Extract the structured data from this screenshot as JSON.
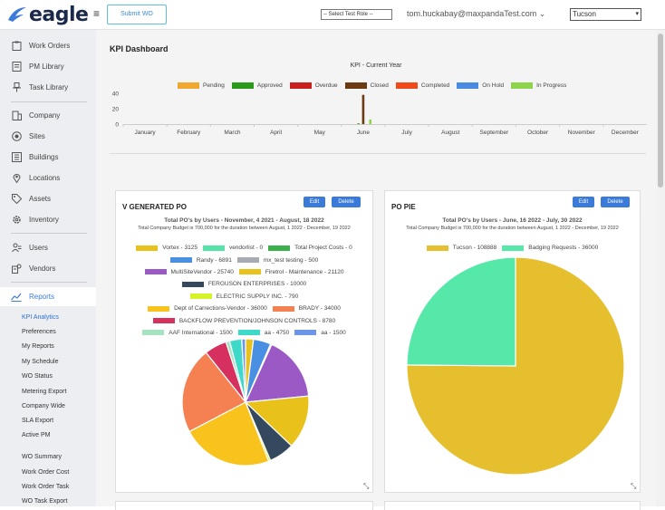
{
  "header": {
    "logo_text": "eagle",
    "submit_wo_label": "Submit WO",
    "role_select": "-- Select Test Role --",
    "user_email": "tom.huckabay@maxpandaTest.com",
    "city_select": "Tucson",
    "brand_color": "#1b2a4a"
  },
  "sidebar": {
    "items": [
      {
        "label": "Work Orders",
        "icon": "clipboard-icon"
      },
      {
        "label": "PM Library",
        "icon": "document-list-icon"
      },
      {
        "label": "Task Library",
        "icon": "pushpin-icon"
      },
      {
        "label": "Company",
        "icon": "building-icon"
      },
      {
        "label": "Sites",
        "icon": "target-icon"
      },
      {
        "label": "Buildings",
        "icon": "buildings-icon"
      },
      {
        "label": "Locations",
        "icon": "map-pin-icon"
      },
      {
        "label": "Assets",
        "icon": "tag-icon"
      },
      {
        "label": "Inventory",
        "icon": "gear-icon"
      },
      {
        "label": "Users",
        "icon": "users-icon"
      },
      {
        "label": "Vendors",
        "icon": "vendors-icon"
      },
      {
        "label": "Reports",
        "icon": "chart-icon"
      }
    ],
    "reports_sub": [
      "KPI Analytics",
      "Preferences",
      "My Reports",
      "My Schedule",
      "WO Status",
      "Metering Export",
      "Company Wide",
      "SLA Export",
      "Active PM"
    ],
    "reports_sub2": [
      "WO Summary",
      "Work Order Cost",
      "Work Order Task",
      "WO Task Export"
    ]
  },
  "dashboard": {
    "title": "KPI Dashboard"
  },
  "chart_data": [
    {
      "type": "bar",
      "title": "KPI - Current Year",
      "categories": [
        "January",
        "February",
        "March",
        "April",
        "May",
        "June",
        "July",
        "August",
        "September",
        "October",
        "November",
        "December"
      ],
      "yticks": [
        0,
        20,
        40
      ],
      "ylim": [
        0,
        40
      ],
      "legend_position": "top",
      "series": [
        {
          "name": "Pending",
          "color": "#f0a830",
          "values": [
            0,
            0,
            0,
            0,
            0,
            0,
            0,
            0,
            0,
            0,
            0,
            0
          ]
        },
        {
          "name": "Approved",
          "color": "#2a9a1a",
          "values": [
            0,
            0,
            0,
            0,
            0,
            1,
            0,
            0,
            0,
            0,
            0,
            0
          ]
        },
        {
          "name": "Overdue",
          "color": "#c81e1e",
          "values": [
            0,
            0,
            0,
            0,
            0,
            0,
            0,
            0,
            0,
            0,
            0,
            0
          ]
        },
        {
          "name": "Closed",
          "color": "#6b3a10",
          "values": [
            0,
            0,
            0,
            0,
            0,
            38,
            0,
            0,
            0,
            0,
            0,
            0
          ]
        },
        {
          "name": "Completed",
          "color": "#f04a1a",
          "values": [
            0,
            0,
            0,
            0,
            0,
            0,
            0,
            0,
            0,
            0,
            0,
            0
          ]
        },
        {
          "name": "On Hold",
          "color": "#4a8ae0",
          "values": [
            0,
            0,
            0,
            0,
            0,
            0,
            0,
            0,
            0,
            0,
            0,
            0
          ]
        },
        {
          "name": "In Progress",
          "color": "#8ed44a",
          "values": [
            0,
            0,
            0,
            0,
            0,
            6,
            0,
            0,
            0,
            0,
            0,
            0
          ]
        }
      ]
    },
    {
      "type": "pie",
      "card_title": "V GENERATED PO",
      "title": "Total PO's by Users - November, 4 2021 - August, 18 2022",
      "subtitle": "Total Company Budget is 700,000 for the duration between August, 1 2022 - December, 19 2022",
      "slices": [
        {
          "name": "Vortex",
          "value": 3125,
          "color": "#e8c21a"
        },
        {
          "name": "vendorlist",
          "value": 0,
          "color": "#56e3a8"
        },
        {
          "name": "Total Project Costs",
          "value": 0,
          "color": "#3ab04a"
        },
        {
          "name": "Randy",
          "value": 6891,
          "color": "#4a90e2"
        },
        {
          "name": "mx_test testing",
          "value": 500,
          "color": "#a7acb3"
        },
        {
          "name": "MultiSiteVendor",
          "value": 25740,
          "color": "#9b59c6"
        },
        {
          "name": "Firetrol - Maintenance",
          "value": 21120,
          "color": "#e8c21a"
        },
        {
          "name": "FERGUSON ENTERPRISES",
          "value": 10000,
          "color": "#34495e"
        },
        {
          "name": "ELECTRIC SUPPLY INC.",
          "value": 790,
          "color": "#d6f22a"
        },
        {
          "name": "Dept of Carrections-Vendor",
          "value": 36000,
          "color": "#f8c31c"
        },
        {
          "name": "BRADY",
          "value": 34000,
          "color": "#f58052"
        },
        {
          "name": "BACKFLOW PREVENTION/JOHNSON CONTROLS",
          "value": 8780,
          "color": "#d6315e"
        },
        {
          "name": "AAF International",
          "value": 1500,
          "color": "#a6e3c0"
        },
        {
          "name": "aa",
          "value": 4750,
          "color": "#3ed9c9"
        },
        {
          "name": "aa",
          "value": 1500,
          "color": "#6c96e8"
        }
      ]
    },
    {
      "type": "pie",
      "card_title": "PO PIE",
      "title": "Total PO's by Users - June, 16 2022 - July, 30 2022",
      "subtitle": "Total Company Budget is 700,000 for the duration between August, 1 2022 - December, 19 2022",
      "slices": [
        {
          "name": "Tucson",
          "value": 108888,
          "color": "#e5bf2e"
        },
        {
          "name": "Badging Requests",
          "value": 36000,
          "color": "#56e8a8"
        }
      ]
    }
  ],
  "card_buttons": {
    "edit": "Edit",
    "delete": "Delete"
  }
}
